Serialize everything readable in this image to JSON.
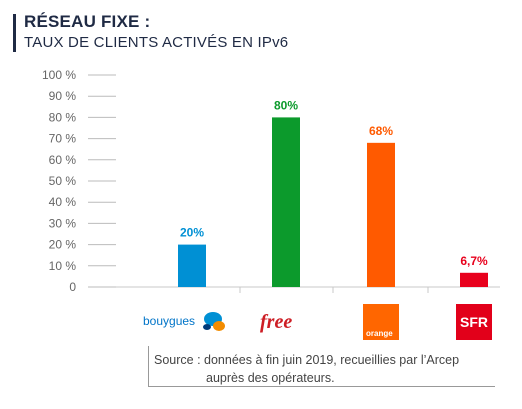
{
  "header": {
    "title": "RÉSEAU FIXE :",
    "subtitle": "TAUX DE CLIENTS ACTIVÉS EN IPv6"
  },
  "chart_data": {
    "type": "bar",
    "categories": [
      "bouygues",
      "free",
      "orange",
      "SFR"
    ],
    "values": [
      20,
      80,
      68,
      6.7
    ],
    "value_labels": [
      "20%",
      "80%",
      "68%",
      "6,7%"
    ],
    "colors": [
      "#0090d4",
      "#0c9a2c",
      "#ff5a00",
      "#e8001c"
    ],
    "ylim": [
      0,
      100
    ],
    "yticks": [
      0,
      10,
      20,
      30,
      40,
      50,
      60,
      70,
      80,
      90,
      100
    ],
    "ytick_labels": [
      "0",
      "10 %",
      "20 %",
      "30 %",
      "40 %",
      "50 %",
      "60 %",
      "70 %",
      "80 %",
      "90 %",
      "100 %"
    ],
    "grid": false
  },
  "logos": {
    "bouygues": "bouygues",
    "free": "free",
    "orange": "orange",
    "sfr": "SFR"
  },
  "footer": {
    "source_line1": "Source : données à fin juin 2019, recueillies par l’Arcep",
    "source_line2": "auprès des opérateurs."
  }
}
